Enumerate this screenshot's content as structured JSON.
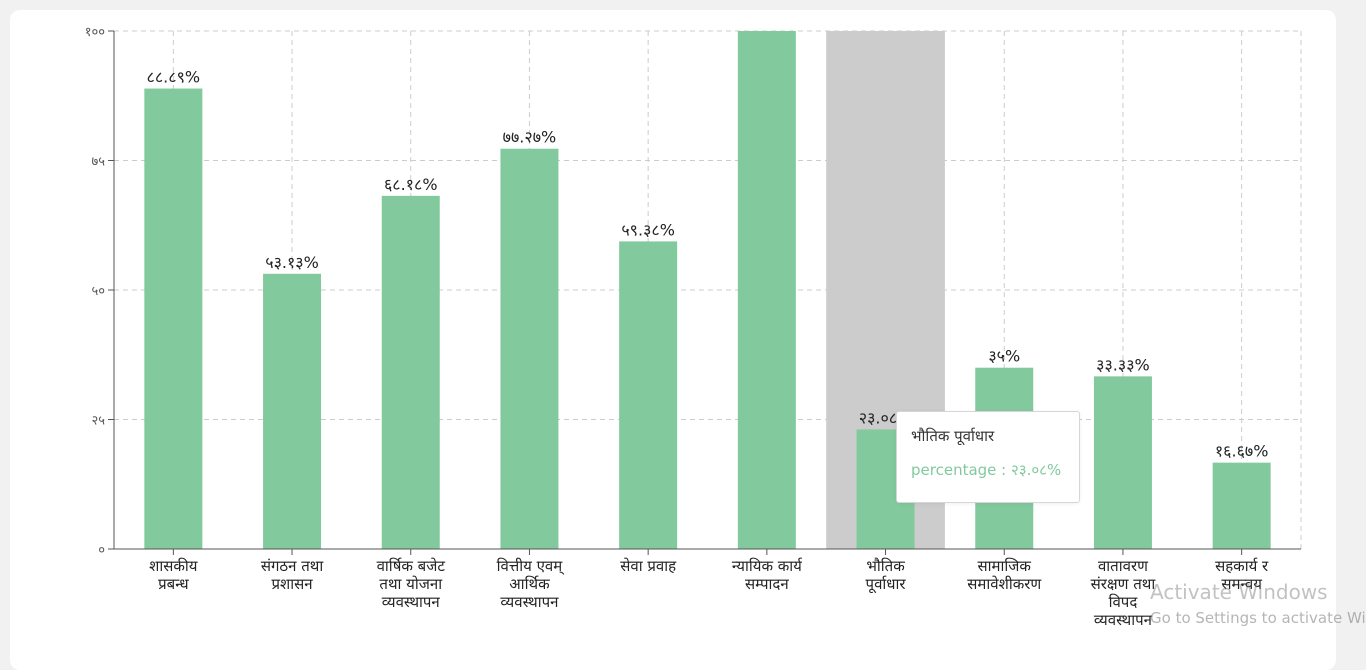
{
  "chart_data": {
    "type": "bar",
    "categories": [
      [
        "शासकीय",
        "प्रबन्ध"
      ],
      [
        "संगठन तथा",
        "प्रशासन"
      ],
      [
        "वार्षिक बजेट",
        "तथा योजना",
        "व्यवस्थापन"
      ],
      [
        "वित्तीय एवम्",
        "आर्थिक",
        "व्यवस्थापन"
      ],
      [
        "सेवा प्रवाह"
      ],
      [
        "न्यायिक कार्य",
        "सम्पादन"
      ],
      [
        "भौतिक",
        "पूर्वाधार"
      ],
      [
        "सामाजिक",
        "समावेशीकरण"
      ],
      [
        "वातावरण",
        "संरक्षण तथा",
        "विपद",
        "व्यवस्थापन"
      ],
      [
        "सहकार्य र",
        "समन्वय"
      ]
    ],
    "series": [
      {
        "values": [
          88.89,
          53.13,
          68.18,
          77.27,
          59.38,
          100,
          23.08,
          35,
          33.33,
          16.67
        ],
        "labels": [
          "८८.८९%",
          "५३.१३%",
          "६८.१८%",
          "७७.२७%",
          "५९.३८%",
          "",
          "२३.०८%",
          "३५%",
          "३३.३३%",
          "१६.६७%"
        ]
      }
    ],
    "ylim": [
      0,
      100
    ],
    "yticks": [
      0,
      25,
      50,
      75,
      100
    ],
    "ytick_labels": [
      "०",
      "२५",
      "५०",
      "७५",
      "१००"
    ],
    "grid": true,
    "highlighted_index": 6,
    "colors": {
      "bar": "#82ca9d",
      "highlight_band": "#cccccc"
    }
  },
  "tooltip": {
    "title": "भौतिक पूर्वाधार",
    "line": "percentage : २३.०८%"
  },
  "watermark": {
    "line1": "Activate Windows",
    "line2": "Go to Settings to activate Windows."
  }
}
